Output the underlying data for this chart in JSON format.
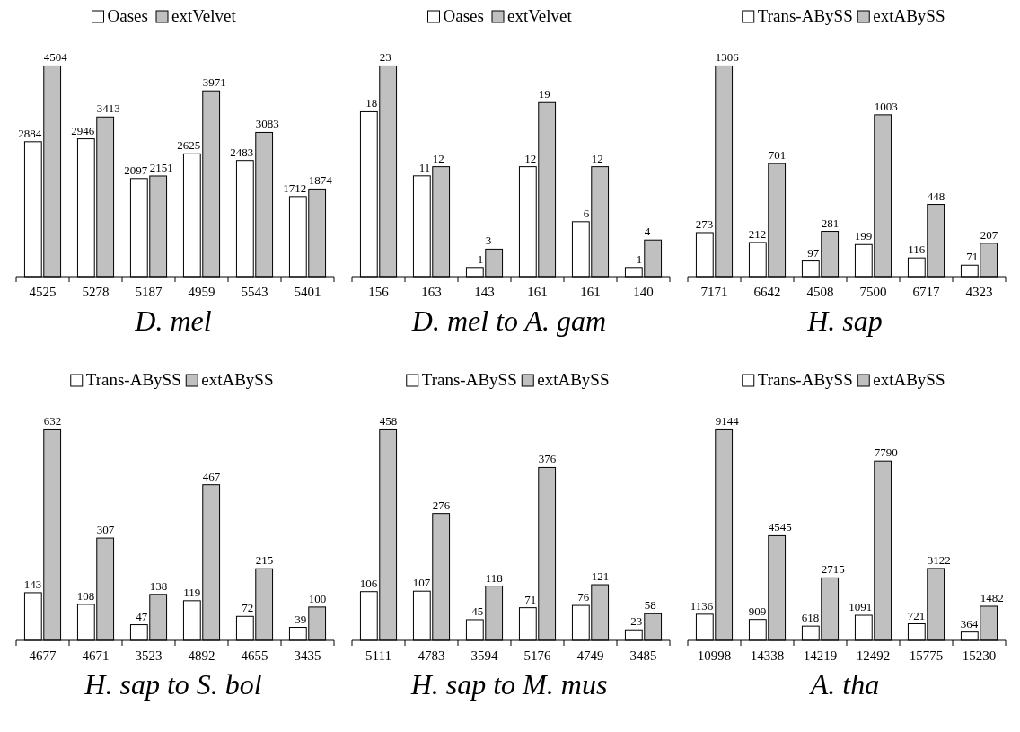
{
  "chart_data": [
    {
      "type": "bar",
      "title": "D. mel",
      "categories": [
        "4525",
        "5278",
        "5187",
        "4959",
        "5543",
        "5401"
      ],
      "series": [
        {
          "name": "Oases",
          "color": "#ffffff",
          "values": [
            2884,
            2946,
            2097,
            2625,
            2483,
            1712
          ]
        },
        {
          "name": "extVelvet",
          "color": "#c0c0c0",
          "values": [
            4504,
            3413,
            2151,
            3971,
            3083,
            1874
          ]
        }
      ],
      "data_labels": true,
      "legend": "top"
    },
    {
      "type": "bar",
      "title": "D. mel to A. gam",
      "categories": [
        "156",
        "163",
        "143",
        "161",
        "161",
        "140"
      ],
      "series": [
        {
          "name": "Oases",
          "color": "#ffffff",
          "values": [
            18,
            11,
            1,
            12,
            6,
            1
          ]
        },
        {
          "name": "extVelvet",
          "color": "#c0c0c0",
          "values": [
            23,
            12,
            3,
            19,
            12,
            4
          ]
        }
      ],
      "data_labels": true,
      "legend": "top"
    },
    {
      "type": "bar",
      "title": "H. sap",
      "categories": [
        "7171",
        "6642",
        "4508",
        "7500",
        "6717",
        "4323"
      ],
      "series": [
        {
          "name": "Trans-ABySS",
          "color": "#ffffff",
          "values": [
            273,
            212,
            97,
            199,
            116,
            71
          ]
        },
        {
          "name": "extABySS",
          "color": "#c0c0c0",
          "values": [
            1306,
            701,
            281,
            1003,
            448,
            207
          ]
        }
      ],
      "data_labels": true,
      "legend": "top"
    },
    {
      "type": "bar",
      "title": "H. sap to S. bol",
      "categories": [
        "4677",
        "4671",
        "3523",
        "4892",
        "4655",
        "3435"
      ],
      "series": [
        {
          "name": "Trans-ABySS",
          "color": "#ffffff",
          "values": [
            143,
            108,
            47,
            119,
            72,
            39
          ]
        },
        {
          "name": "extABySS",
          "color": "#c0c0c0",
          "values": [
            632,
            307,
            138,
            467,
            215,
            100
          ]
        }
      ],
      "data_labels": true,
      "legend": "top"
    },
    {
      "type": "bar",
      "title": "H. sap to M. mus",
      "categories": [
        "5111",
        "4783",
        "3594",
        "5176",
        "4749",
        "3485"
      ],
      "series": [
        {
          "name": "Trans-ABySS",
          "color": "#ffffff",
          "values": [
            106,
            107,
            45,
            71,
            76,
            23
          ]
        },
        {
          "name": "extABySS",
          "color": "#c0c0c0",
          "values": [
            458,
            276,
            118,
            376,
            121,
            58
          ]
        }
      ],
      "data_labels": true,
      "legend": "top"
    },
    {
      "type": "bar",
      "title": "A. tha",
      "categories": [
        "10998",
        "14338",
        "14219",
        "12492",
        "15775",
        "15230"
      ],
      "series": [
        {
          "name": "Trans-ABySS",
          "color": "#ffffff",
          "values": [
            1136,
            909,
            618,
            1091,
            721,
            364
          ]
        },
        {
          "name": "extABySS",
          "color": "#c0c0c0",
          "values": [
            9144,
            4545,
            2715,
            7790,
            3122,
            1482
          ]
        }
      ],
      "data_labels": true,
      "legend": "top"
    }
  ]
}
